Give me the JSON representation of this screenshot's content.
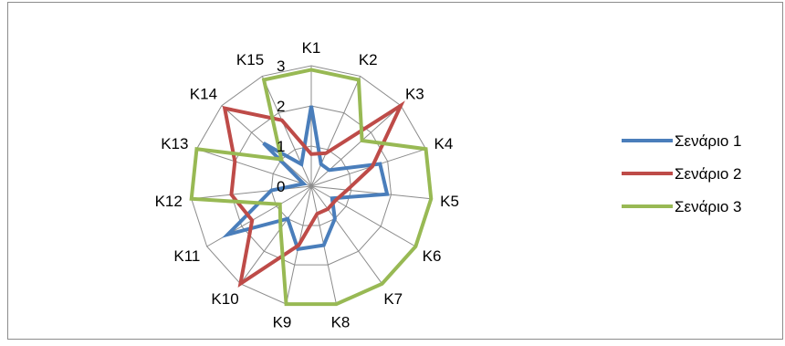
{
  "chart_data": {
    "type": "radar",
    "categories": [
      "K1",
      "K2",
      "K3",
      "K4",
      "K5",
      "K6",
      "K7",
      "K8",
      "K9",
      "K10",
      "K11",
      "K12",
      "K13",
      "K14",
      "K15"
    ],
    "rlim": [
      0,
      3
    ],
    "ticks": [
      "0",
      "1",
      "2",
      "3"
    ],
    "grid": true,
    "legend_position": "right",
    "series": [
      {
        "name": "Σενάριο 1",
        "color": "#4a7ebb",
        "values": [
          2.0,
          0.6,
          0.6,
          1.8,
          1.9,
          0.6,
          1.0,
          1.5,
          1.6,
          1.0,
          2.4,
          1.0,
          0.2,
          1.6,
          0.6
        ]
      },
      {
        "name": "Σενάριο 2",
        "color": "#be4b48",
        "values": [
          0.8,
          0.9,
          3.0,
          1.6,
          0.9,
          0.7,
          0.7,
          0.7,
          1.5,
          3.0,
          1.7,
          2.0,
          2.0,
          2.9,
          1.8
        ]
      },
      {
        "name": "Σενάριο 3",
        "color": "#98b954",
        "values": [
          2.9,
          2.9,
          1.7,
          3.0,
          3.0,
          3.0,
          3.0,
          3.0,
          3.0,
          1.3,
          0.9,
          3.0,
          3.0,
          1.0,
          2.9
        ]
      }
    ]
  }
}
